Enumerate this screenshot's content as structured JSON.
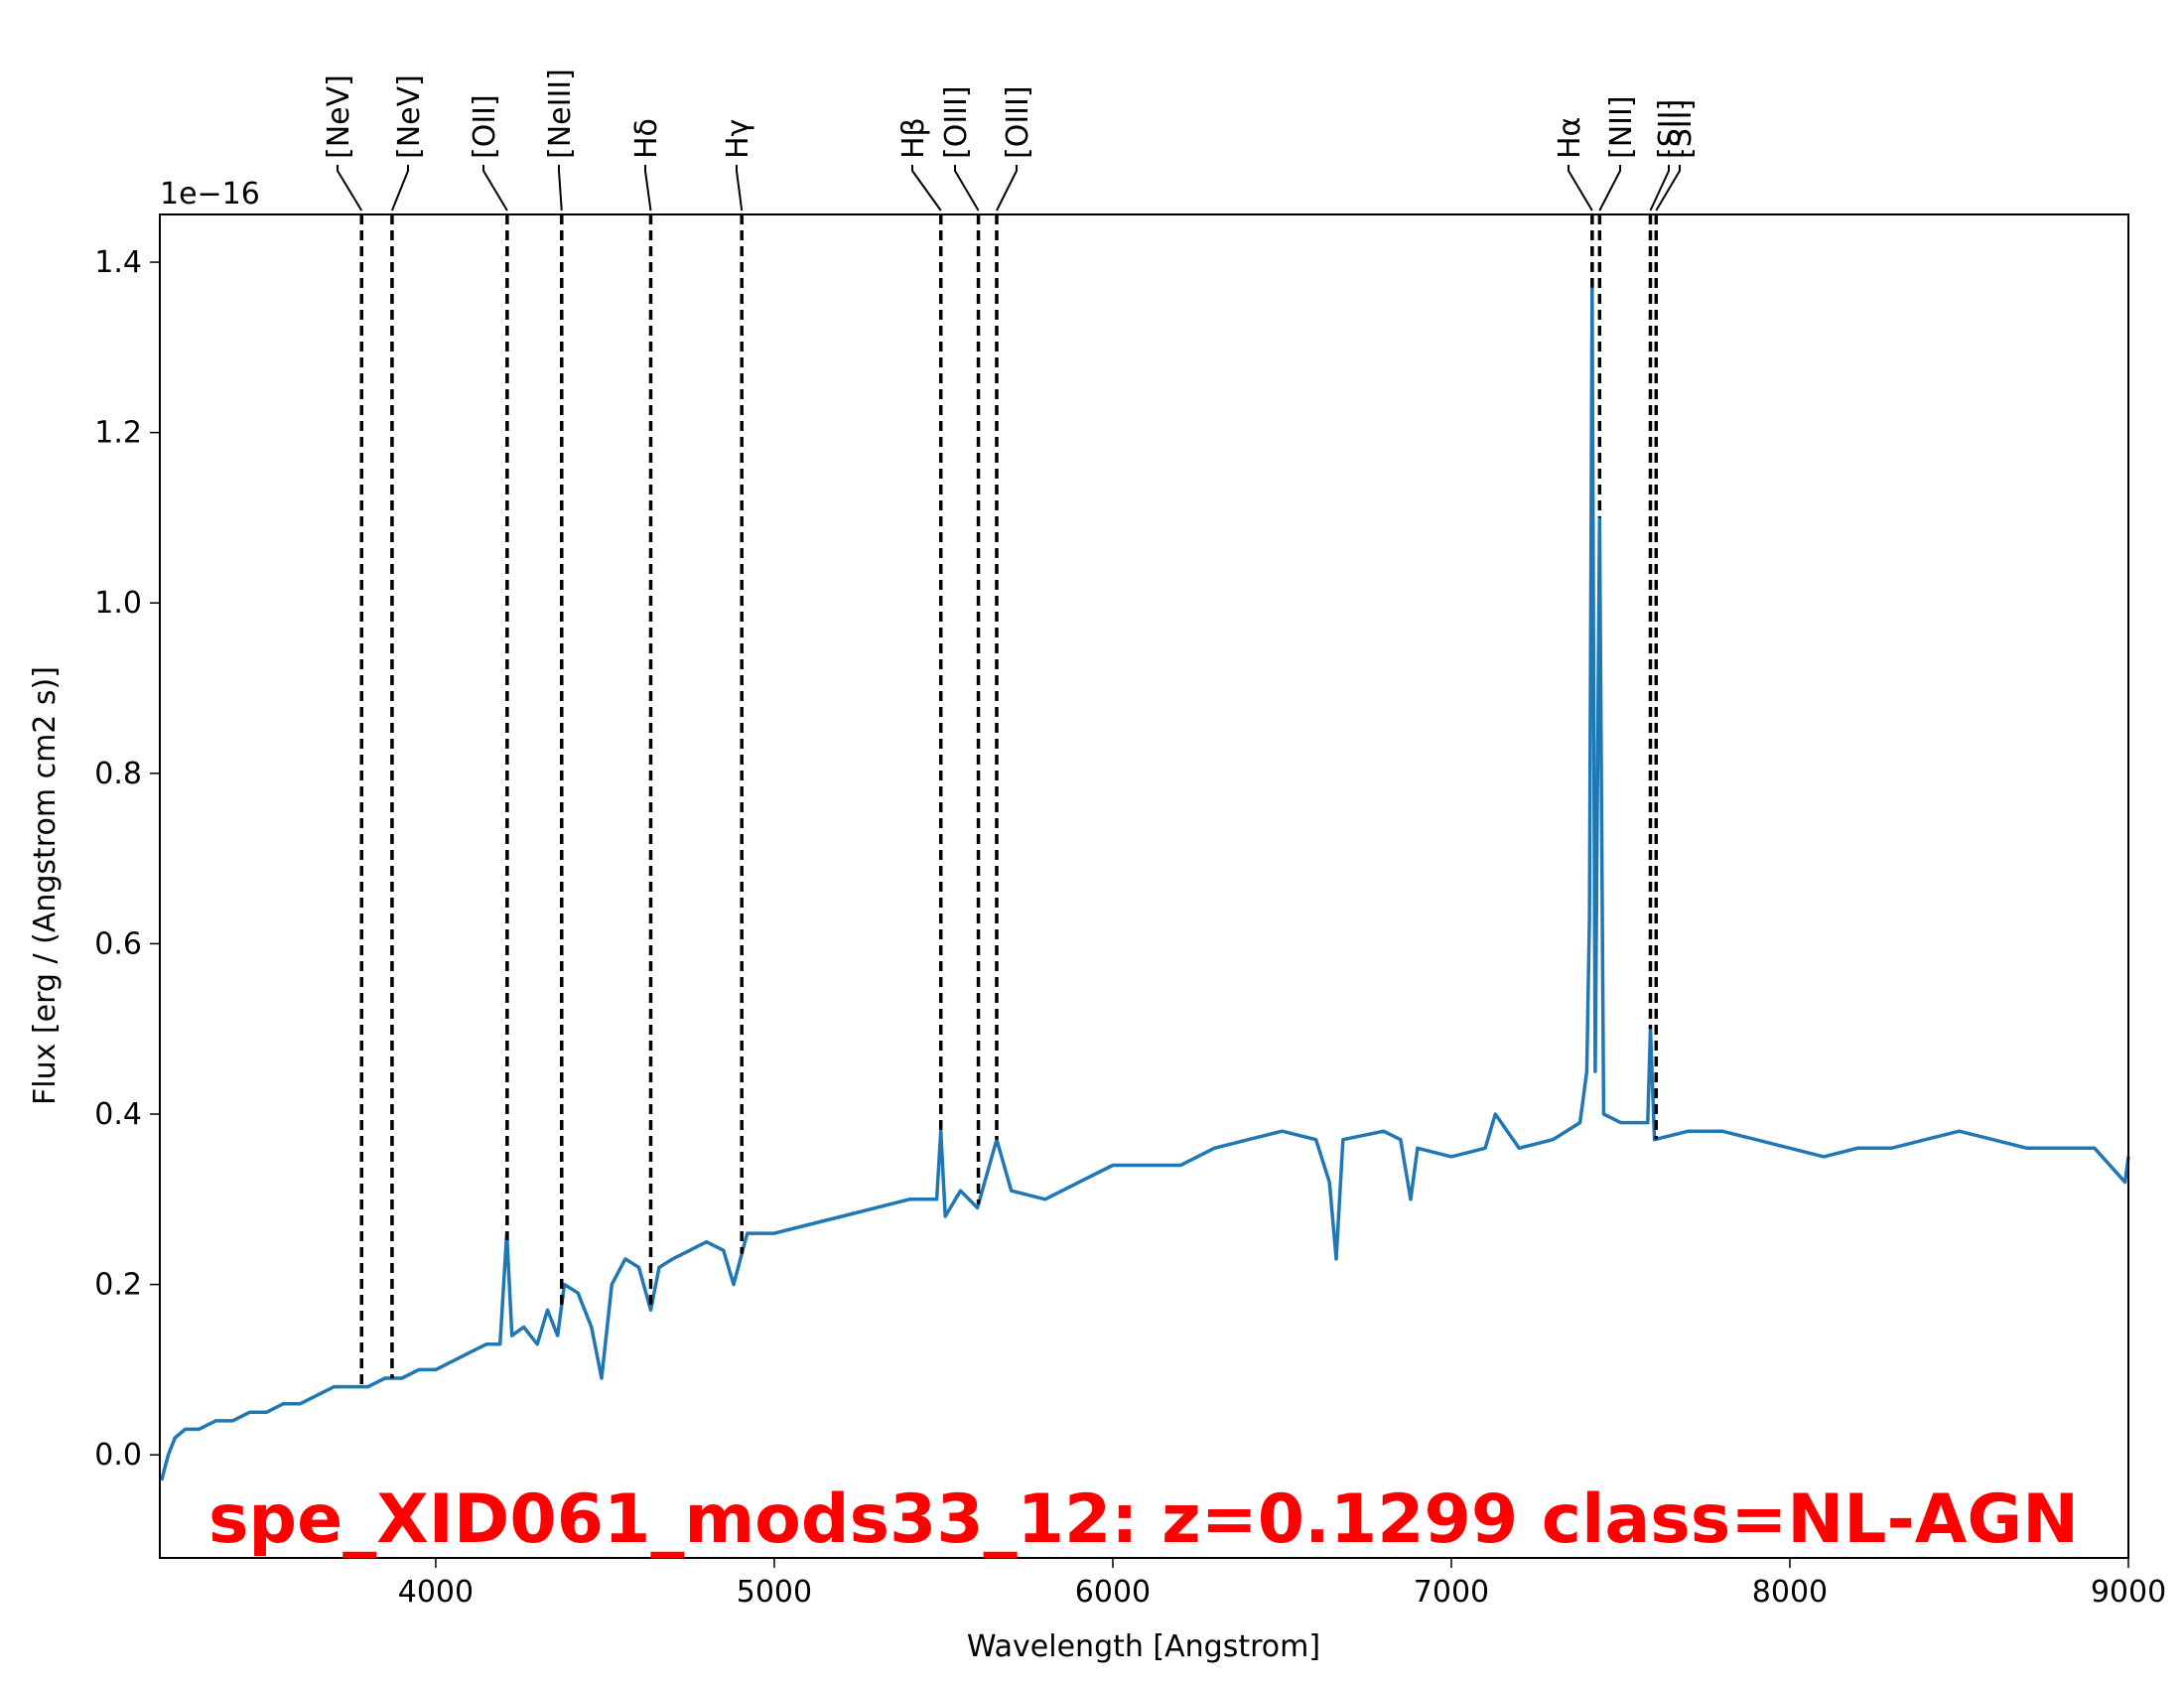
{
  "chart_data": {
    "type": "line",
    "title": "spe_XID061_mods33_12: z=0.1299 class=NL-AGN",
    "x_label": "Wavelength [Angstrom]",
    "y_label": "Flux [erg / (Angstrom cm2 s)]",
    "offset_label": "1e−16",
    "color": "#1f77b4",
    "title_color": "#ff0000",
    "xlim": [
      3185,
      9000
    ],
    "ylim": [
      -0.121,
      1.456
    ],
    "xticks": [
      4000,
      5000,
      6000,
      7000,
      8000,
      9000
    ],
    "yticks": [
      {
        "value": 0,
        "label": "0.0"
      },
      0.2,
      0.4,
      0.6,
      0.8,
      {
        "value": 1,
        "label": "1.0"
      },
      1.2,
      1.4
    ],
    "x": [
      3190,
      3210,
      3230,
      3260,
      3300,
      3350,
      3400,
      3450,
      3500,
      3550,
      3600,
      3650,
      3700,
      3750,
      3800,
      3850,
      3900,
      3950,
      4000,
      4050,
      4100,
      4150,
      4190,
      4210,
      4225,
      4260,
      4300,
      4330,
      4360,
      4380,
      4420,
      4460,
      4490,
      4520,
      4560,
      4600,
      4635,
      4660,
      4700,
      4750,
      4800,
      4850,
      4880,
      4920,
      5000,
      5100,
      5200,
      5300,
      5400,
      5480,
      5492,
      5505,
      5550,
      5600,
      5657,
      5700,
      5800,
      5900,
      6000,
      6100,
      6200,
      6300,
      6400,
      6500,
      6600,
      6640,
      6660,
      6680,
      6800,
      6850,
      6880,
      6900,
      7000,
      7100,
      7130,
      7200,
      7300,
      7380,
      7400,
      7408,
      7416,
      7425,
      7438,
      7450,
      7500,
      7580,
      7588,
      7600,
      7700,
      7800,
      7900,
      8000,
      8100,
      8200,
      8300,
      8400,
      8500,
      8600,
      8700,
      8800,
      8900,
      8990,
      9000
    ],
    "values": [
      -0.03,
      0.0,
      0.02,
      0.03,
      0.03,
      0.04,
      0.04,
      0.05,
      0.05,
      0.06,
      0.06,
      0.07,
      0.08,
      0.08,
      0.08,
      0.09,
      0.09,
      0.1,
      0.1,
      0.11,
      0.12,
      0.13,
      0.13,
      0.26,
      0.14,
      0.15,
      0.13,
      0.17,
      0.14,
      0.2,
      0.19,
      0.15,
      0.09,
      0.2,
      0.23,
      0.22,
      0.17,
      0.22,
      0.23,
      0.24,
      0.25,
      0.24,
      0.2,
      0.26,
      0.26,
      0.27,
      0.28,
      0.29,
      0.3,
      0.3,
      0.38,
      0.28,
      0.31,
      0.29,
      0.37,
      0.31,
      0.3,
      0.32,
      0.34,
      0.34,
      0.34,
      0.36,
      0.37,
      0.38,
      0.37,
      0.32,
      0.23,
      0.37,
      0.38,
      0.37,
      0.3,
      0.36,
      0.35,
      0.36,
      0.4,
      0.36,
      0.37,
      0.39,
      0.45,
      0.63,
      1.37,
      0.45,
      1.1,
      0.4,
      0.39,
      0.39,
      0.5,
      0.37,
      0.38,
      0.38,
      0.37,
      0.36,
      0.35,
      0.36,
      0.36,
      0.37,
      0.38,
      0.37,
      0.36,
      0.36,
      0.36,
      0.32,
      0.35
    ],
    "lines": [
      {
        "label": "[NeV]",
        "x": 3781
      },
      {
        "label": "[NeV]",
        "x": 3871
      },
      {
        "label": "[OII]",
        "x": 4211
      },
      {
        "label": "[NeIII]",
        "x": 4372
      },
      {
        "label": "Hδ",
        "x": 4635
      },
      {
        "label": "Hγ",
        "x": 4904
      },
      {
        "label": "Hβ",
        "x": 5492
      },
      {
        "label": "[OIII]",
        "x": 5603
      },
      {
        "label": "[OIII]",
        "x": 5657
      },
      {
        "label": "Hα",
        "x": 7416
      },
      {
        "label": "[NII]",
        "x": 7438
      },
      {
        "label": "[SII]",
        "x": 7588
      },
      {
        "label": "[SII]",
        "x": 7605
      }
    ]
  }
}
